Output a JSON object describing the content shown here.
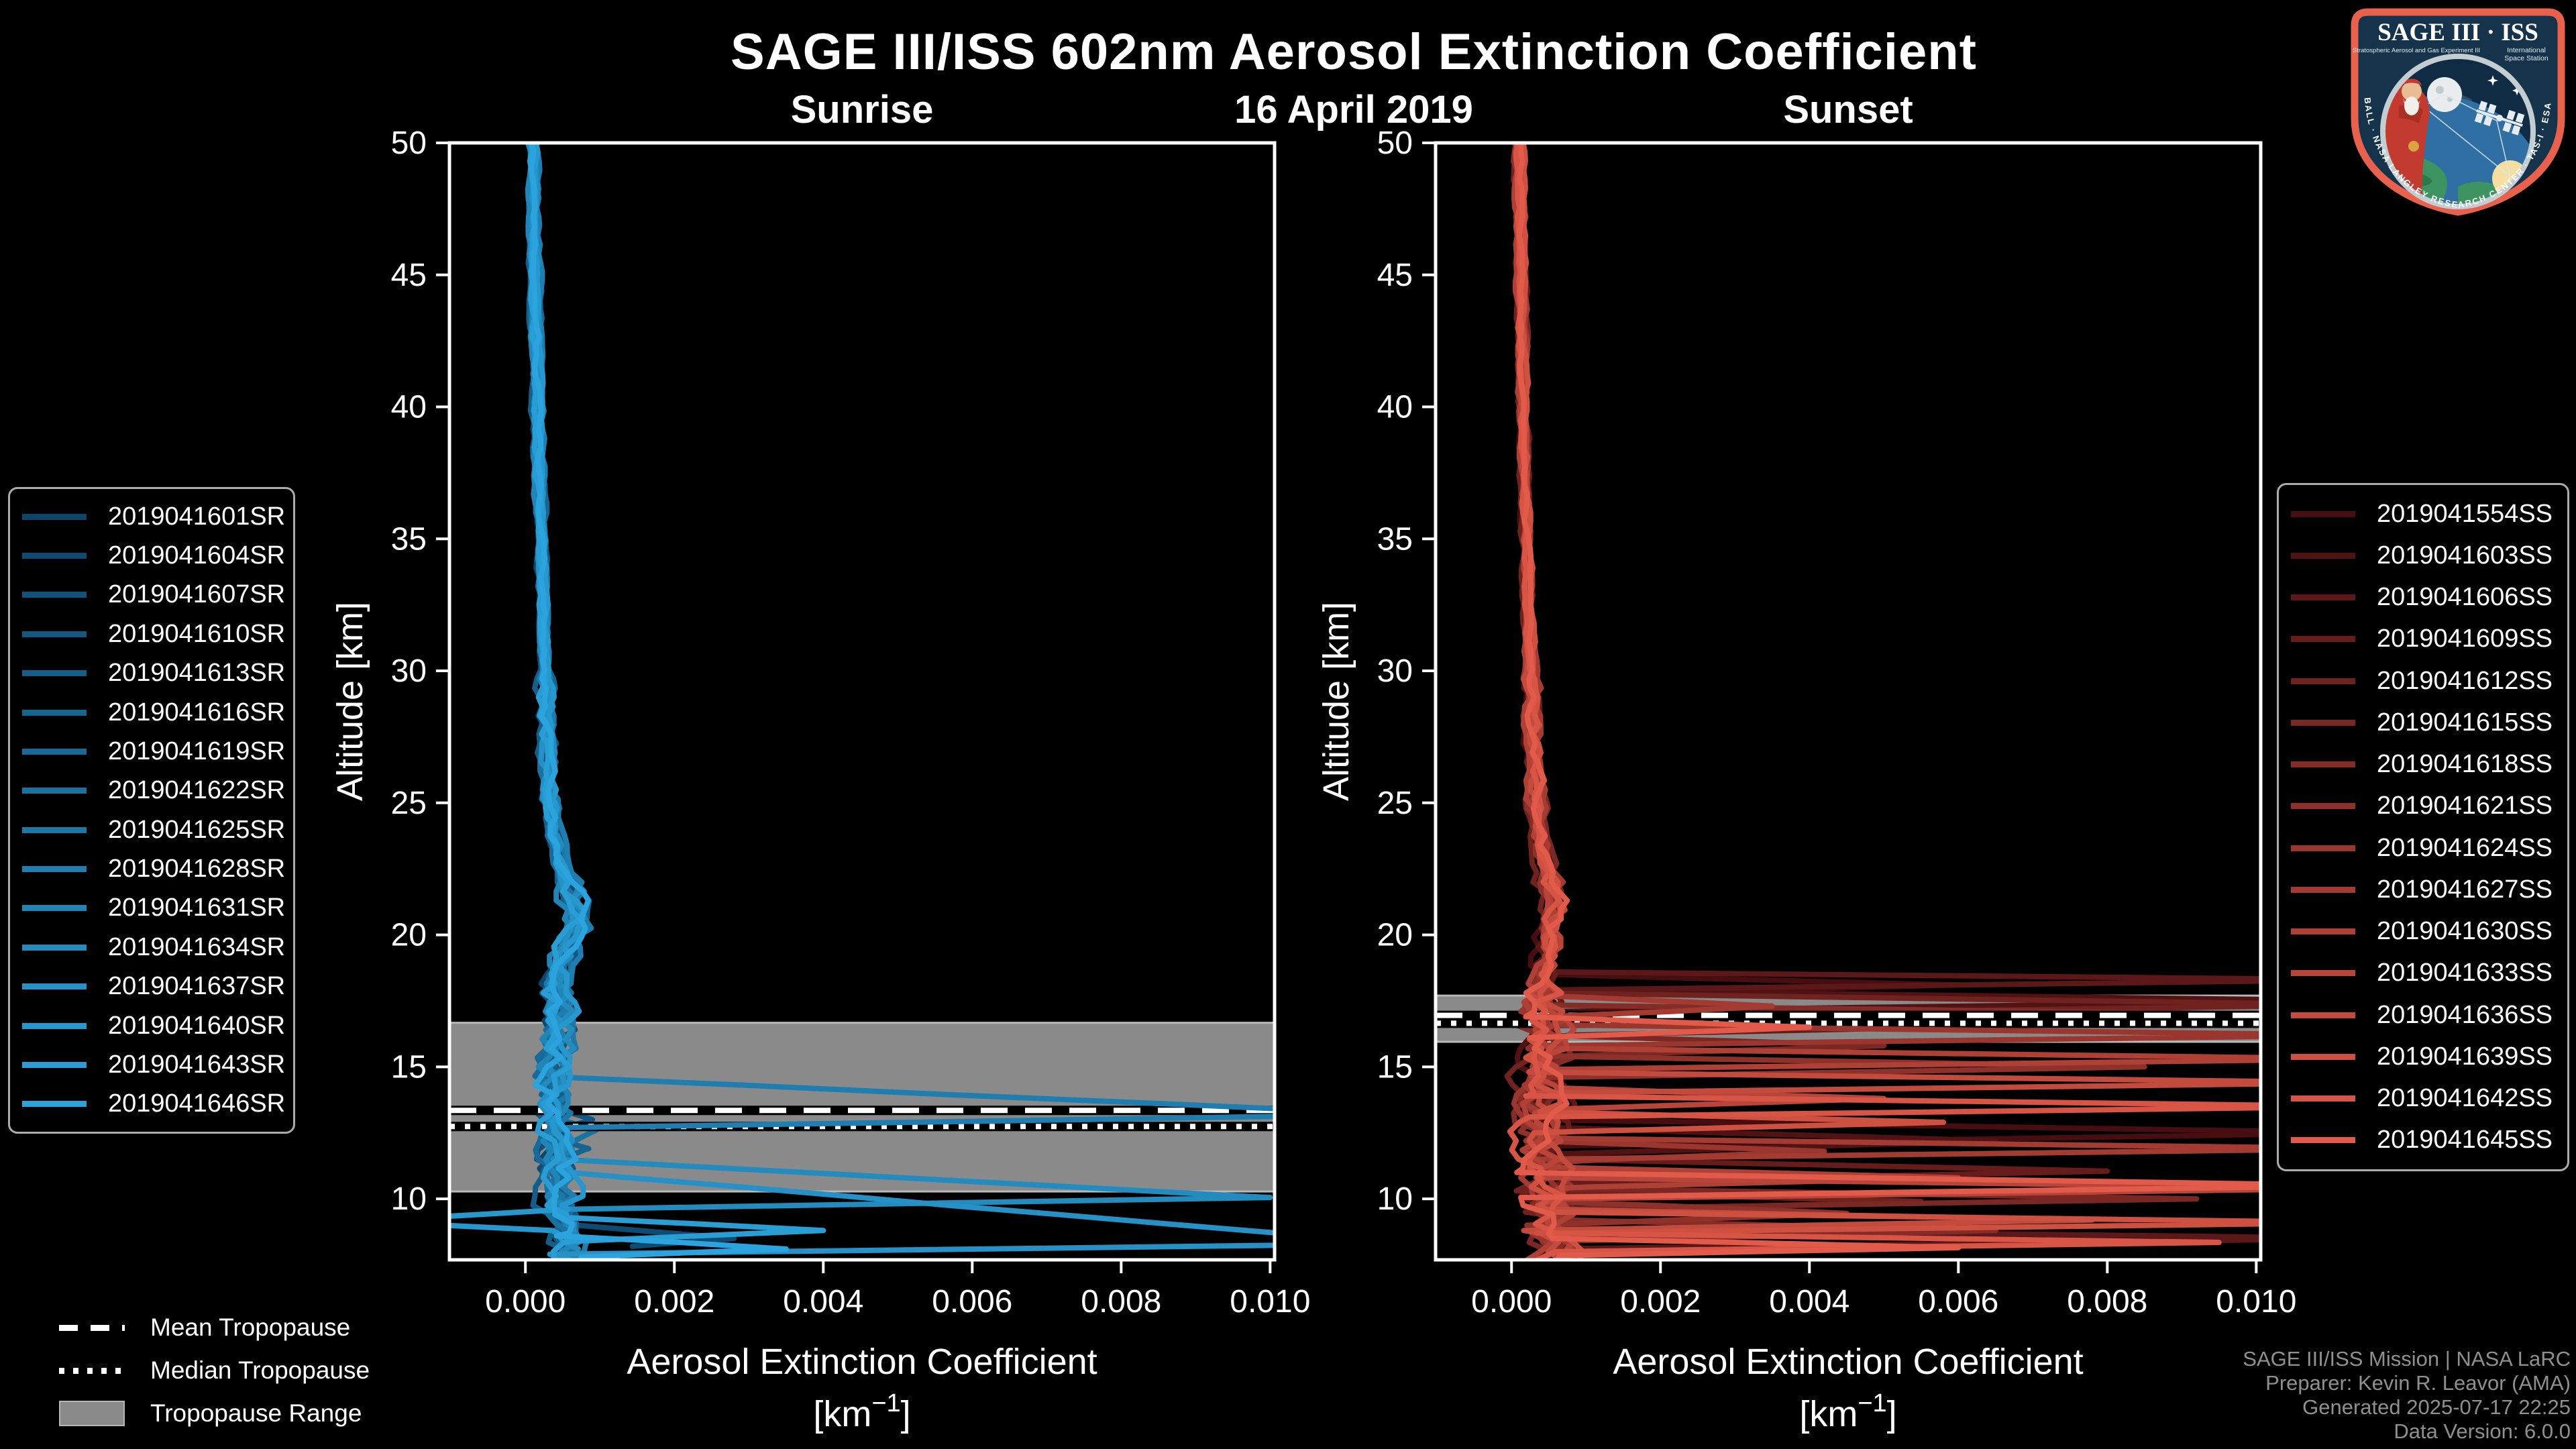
{
  "header": {
    "title": "SAGE III/ISS 602nm Aerosol Extinction Coefficient",
    "date": "16 April 2019"
  },
  "tropopause_legend": {
    "mean": "Mean Tropopause",
    "median": "Median Tropopause",
    "range": "Tropopause Range"
  },
  "credits": {
    "line1": "SAGE III/ISS Mission | NASA LaRC",
    "line2": "Preparer: Kevin R. Leavor (AMA)",
    "line3": "Generated 2025-07-17 22:25",
    "line4": "Data Version: 6.0.0"
  },
  "logo": {
    "title": "SAGE III · ISS",
    "subtitle_left": "Stratospheric Aerosol and Gas Experiment III",
    "subtitle_right_1": "International",
    "subtitle_right_2": "Space Station",
    "border_text": "BALL · NASA LANGLEY RESEARCH CENTER · TAS-I · ESA"
  },
  "chart_data": [
    {
      "type": "line",
      "panel_title": "Sunrise",
      "xlabel": "Aerosol Extinction Coefficient",
      "xunit": "[km^-1]",
      "ylabel": "Altitude [km]",
      "xlim": [
        -0.00102,
        0.01006
      ],
      "ylim": [
        7.69,
        50
      ],
      "xticks": [
        0,
        0.002,
        0.004,
        0.006,
        0.008,
        0.01
      ],
      "yticks": [
        10,
        15,
        20,
        25,
        30,
        35,
        40,
        45,
        50
      ],
      "grid": false,
      "legend_position": "outside-left",
      "noise_low": 0.00018,
      "tropopause": {
        "range_km": [
          10.28,
          16.67
        ],
        "mean_km": 13.35,
        "median_km": 12.74
      },
      "base_profile": [
        [
          50,
          0.0001
        ],
        [
          46,
          0.00012
        ],
        [
          42,
          0.00015
        ],
        [
          38,
          0.00018
        ],
        [
          34,
          0.00022
        ],
        [
          30,
          0.00026
        ],
        [
          27,
          0.0003
        ],
        [
          25,
          0.00034
        ],
        [
          24,
          0.00038
        ],
        [
          23,
          0.00044
        ],
        [
          22.5,
          0.0005
        ],
        [
          22,
          0.00056
        ],
        [
          21.5,
          0.00062
        ],
        [
          21,
          0.00067
        ],
        [
          20.5,
          0.0007
        ],
        [
          20,
          0.00064
        ],
        [
          19.5,
          0.00055
        ],
        [
          19,
          0.00048
        ],
        [
          18,
          0.00042
        ],
        [
          17,
          0.00044
        ],
        [
          16,
          0.0004
        ],
        [
          15,
          0.00037
        ],
        [
          14,
          0.0004
        ],
        [
          13,
          0.00042
        ],
        [
          12,
          0.00038
        ],
        [
          11,
          0.0004
        ],
        [
          10,
          0.00046
        ],
        [
          9,
          0.00052
        ],
        [
          8,
          0.00058
        ],
        [
          7.5,
          0.00062
        ]
      ],
      "series": [
        {
          "id": "2019041601SR",
          "color": "#0C456B",
          "seed": 11,
          "off": -4e-05,
          "end": 8.6,
          "spikes": []
        },
        {
          "id": "2019041604SR",
          "color": "#0E4B73",
          "seed": 22,
          "off": 2e-05,
          "end": 8.2,
          "spikes": [
            [
              9.0,
              8.5,
              8.05,
              0.0028
            ]
          ]
        },
        {
          "id": "2019041607SR",
          "color": "#10527A",
          "seed": 33,
          "off": -2e-05,
          "end": 7.7,
          "spikes": []
        },
        {
          "id": "2019041610SR",
          "color": "#125882",
          "seed": 44,
          "off": 4e-05,
          "end": 8.9,
          "spikes": [
            [
              13.5,
              13.0,
              12.5,
              0.0009
            ]
          ]
        },
        {
          "id": "2019041613SR",
          "color": "#145E89",
          "seed": 55,
          "off": -5e-05,
          "end": 7.7,
          "spikes": []
        },
        {
          "id": "2019041616SR",
          "color": "#166591",
          "seed": 66,
          "off": 5e-05,
          "end": 8.4,
          "spikes": [
            [
              12.3,
              11.9,
              11.5,
              0.00085
            ]
          ]
        },
        {
          "id": "2019041619SR",
          "color": "#186B98",
          "seed": 77,
          "off": 1e-05,
          "end": 7.7,
          "spikes": []
        },
        {
          "id": "2019041622SR",
          "color": "#1A72A0",
          "seed": 88,
          "off": -3e-05,
          "end": 7.7,
          "spikes": [
            [
              13.1,
              12.6,
              12.1,
              0.00095
            ]
          ]
        },
        {
          "id": "2019041625SR",
          "color": "#1D78A8",
          "seed": 99,
          "off": 3e-05,
          "end": 8.8,
          "spikes": []
        },
        {
          "id": "2019041628SR",
          "color": "#1F7EAF",
          "seed": 110,
          "off": 6e-05,
          "end": 7.7,
          "spikes": [
            [
              14.6,
              13.2,
              12.7,
              0.0118
            ]
          ]
        },
        {
          "id": "2019041631SR",
          "color": "#2185B7",
          "seed": 121,
          "off": -4e-05,
          "end": 7.7,
          "spikes": []
        },
        {
          "id": "2019041634SR",
          "color": "#238BBE",
          "seed": 132,
          "off": 2e-05,
          "end": 8.1,
          "spikes": [
            [
              11.5,
              10.05,
              9.6,
              0.01
            ]
          ]
        },
        {
          "id": "2019041637SR",
          "color": "#2591C6",
          "seed": 143,
          "off": -1e-05,
          "end": 7.7,
          "spikes": [
            [
              11.0,
              8.3,
              7.9,
              0.0118
            ]
          ]
        },
        {
          "id": "2019041640SR",
          "color": "#2798CD",
          "seed": 154,
          "off": 4e-05,
          "end": 8.5,
          "spikes": [
            [
              9.6,
              9.15,
              8.8,
              -0.0022
            ]
          ]
        },
        {
          "id": "2019041643SR",
          "color": "#299ED5",
          "seed": 165,
          "off": -2e-05,
          "end": 7.7,
          "spikes": [
            [
              9.3,
              8.8,
              8.4,
              0.004
            ]
          ]
        },
        {
          "id": "2019041646SR",
          "color": "#2BA3DE",
          "seed": 176,
          "off": 1e-05,
          "end": 7.7,
          "spikes": [
            [
              8.6,
              8.1,
              7.8,
              0.0035
            ]
          ]
        }
      ]
    },
    {
      "type": "line",
      "panel_title": "Sunset",
      "xlabel": "Aerosol Extinction Coefficient",
      "xunit": "[km^-1]",
      "ylabel": "Altitude [km]",
      "xlim": [
        -0.00102,
        0.01006
      ],
      "ylim": [
        7.69,
        50
      ],
      "xticks": [
        0,
        0.002,
        0.004,
        0.006,
        0.008,
        0.01
      ],
      "yticks": [
        10,
        15,
        20,
        25,
        30,
        35,
        40,
        45,
        50
      ],
      "grid": false,
      "legend_position": "outside-right",
      "noise_low": 0.00026,
      "tropopause": {
        "range_km": [
          15.95,
          17.7
        ],
        "mean_km": 16.95,
        "median_km": 16.65
      },
      "base_profile": [
        [
          50,
          0.0001
        ],
        [
          46,
          0.00012
        ],
        [
          42,
          0.00014
        ],
        [
          38,
          0.00017
        ],
        [
          34,
          0.00021
        ],
        [
          30,
          0.00025
        ],
        [
          27,
          0.00029
        ],
        [
          25,
          0.00033
        ],
        [
          24,
          0.00037
        ],
        [
          23,
          0.00042
        ],
        [
          22.5,
          0.00047
        ],
        [
          22,
          0.00052
        ],
        [
          21.5,
          0.00058
        ],
        [
          21,
          0.00063
        ],
        [
          20.5,
          0.0006
        ],
        [
          20,
          0.00055
        ],
        [
          19.5,
          0.0005
        ],
        [
          19,
          0.00046
        ],
        [
          18,
          0.00043
        ],
        [
          17,
          0.00045
        ],
        [
          16,
          0.00042
        ],
        [
          15,
          0.0004
        ],
        [
          14,
          0.00042
        ],
        [
          13,
          0.0004
        ],
        [
          12,
          0.00042
        ],
        [
          11,
          0.00044
        ],
        [
          10,
          0.00046
        ],
        [
          9,
          0.0005
        ],
        [
          8,
          0.00056
        ],
        [
          7.5,
          0.0006
        ]
      ],
      "series": [
        {
          "id": "2019041554SS",
          "color": "#470D10",
          "seed": 201,
          "off": -4e-05,
          "end": 7.7,
          "spikes": [
            [
              18.5,
              18.1,
              17.7,
              0.006
            ],
            [
              13.0,
              12.5,
              12.0,
              0.0115
            ]
          ]
        },
        {
          "id": "2019041603SS",
          "color": "#511214",
          "seed": 212,
          "off": 3e-05,
          "end": 8.1,
          "spikes": [
            [
              17.9,
              17.5,
              17.1,
              0.0115
            ],
            [
              12.7,
              12.2,
              11.7,
              0.0065
            ]
          ]
        },
        {
          "id": "2019041606SS",
          "color": "#5C1718",
          "seed": 223,
          "off": -2e-05,
          "end": 7.7,
          "spikes": [
            [
              18.6,
              18.3,
              17.9,
              0.0115
            ],
            [
              8.9,
              8.5,
              8.1,
              0.0115
            ]
          ]
        },
        {
          "id": "2019041609SS",
          "color": "#661C1B",
          "seed": 234,
          "off": 5e-05,
          "end": 7.7,
          "spikes": [
            [
              17.0,
              16.6,
              16.2,
              0.0075
            ],
            [
              11.5,
              11.05,
              10.6,
              0.008
            ]
          ]
        },
        {
          "id": "2019041612SS",
          "color": "#70221F",
          "seed": 245,
          "off": -5e-05,
          "end": 8.4,
          "spikes": [
            [
              17.8,
              17.35,
              16.9,
              0.0115
            ],
            [
              10.3,
              9.9,
              9.5,
              0.0055
            ]
          ]
        },
        {
          "id": "2019041615SS",
          "color": "#7B2723",
          "seed": 256,
          "off": 4e-05,
          "end": 7.7,
          "spikes": [
            [
              16.2,
              15.8,
              15.4,
              0.005
            ],
            [
              10.4,
              10.0,
              9.6,
              0.0092
            ]
          ]
        },
        {
          "id": "2019041618SS",
          "color": "#852C27",
          "seed": 267,
          "off": 1e-05,
          "end": 7.7,
          "spikes": [
            [
              17.35,
              16.95,
              16.55,
              0.0115
            ],
            [
              9.2,
              8.8,
              8.4,
              0.0065
            ]
          ]
        },
        {
          "id": "2019041621SS",
          "color": "#8F312B",
          "seed": 278,
          "off": -3e-05,
          "end": 7.7,
          "spikes": [
            [
              15.4,
              15.0,
              14.6,
              0.0085
            ],
            [
              9.9,
              9.45,
              9.0,
              0.0045
            ]
          ]
        },
        {
          "id": "2019041624SS",
          "color": "#9A362E",
          "seed": 289,
          "off": 2e-05,
          "end": 7.7,
          "spikes": [
            [
              16.6,
              16.2,
              15.8,
              0.0115
            ],
            [
              12.2,
              11.8,
              11.4,
              0.0042
            ]
          ]
        },
        {
          "id": "2019041627SS",
          "color": "#A43B32",
          "seed": 300,
          "off": 5e-05,
          "end": 8.0,
          "spikes": [
            [
              17.7,
              17.3,
              16.9,
              0.0035
            ],
            [
              12.3,
              11.9,
              11.5,
              0.0115
            ]
          ]
        },
        {
          "id": "2019041630SS",
          "color": "#AE4036",
          "seed": 311,
          "off": -4e-05,
          "end": 7.7,
          "spikes": [
            [
              15.7,
              15.3,
              14.9,
              0.0115
            ],
            [
              11.2,
              10.8,
              10.4,
              0.006
            ]
          ]
        },
        {
          "id": "2019041633SS",
          "color": "#B9453A",
          "seed": 322,
          "off": 2e-05,
          "end": 7.7,
          "spikes": [
            [
              14.2,
              13.8,
              13.4,
              0.005
            ],
            [
              10.8,
              10.4,
              10.0,
              0.0115
            ]
          ]
        },
        {
          "id": "2019041636SS",
          "color": "#C34B3E",
          "seed": 333,
          "off": -1e-05,
          "end": 7.7,
          "spikes": [
            [
              14.8,
              14.4,
              14.0,
              0.0115
            ],
            [
              9.6,
              9.2,
              8.8,
              0.0078
            ]
          ]
        },
        {
          "id": "2019041639SS",
          "color": "#CD5041",
          "seed": 344,
          "off": 4e-05,
          "end": 7.7,
          "spikes": [
            [
              13.3,
              12.9,
              12.5,
              0.0058
            ],
            [
              9.5,
              9.1,
              8.7,
              0.0115
            ]
          ]
        },
        {
          "id": "2019041642SS",
          "color": "#D85545",
          "seed": 355,
          "off": -2e-05,
          "end": 7.7,
          "spikes": [
            [
              13.9,
              13.5,
              13.1,
              0.0115
            ],
            [
              8.7,
              8.35,
              8.0,
              0.0095
            ]
          ]
        },
        {
          "id": "2019041645SS",
          "color": "#E25A49",
          "seed": 366,
          "off": 1e-05,
          "end": 7.7,
          "spikes": [
            [
              16.9,
              16.5,
              16.1,
              0.004
            ],
            [
              11.0,
              10.5,
              10.05,
              0.0115
            ],
            [
              8.5,
              8.15,
              7.85,
              0.006
            ]
          ]
        }
      ]
    }
  ]
}
